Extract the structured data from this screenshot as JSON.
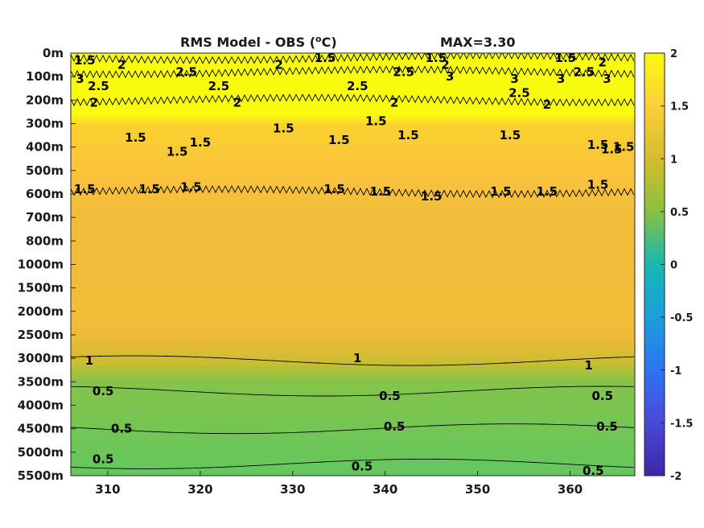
{
  "chart_data": {
    "type": "heatmap",
    "title": "RMS Model - OBS (",
    "title_unit_sup": "o",
    "title_unit_tail": "C)",
    "max_label": "MAX=3.30",
    "x_ticks": [
      310,
      320,
      330,
      340,
      350,
      360
    ],
    "xlim": [
      306,
      367
    ],
    "y_tick_labels": [
      "0m",
      "100m",
      "200m",
      "300m",
      "400m",
      "500m",
      "600m",
      "700m",
      "800m",
      "1000m",
      "1500m",
      "2000m",
      "2500m",
      "3000m",
      "3500m",
      "4000m",
      "4500m",
      "5000m",
      "5500m"
    ],
    "colorbar": {
      "limits": [
        -2,
        2
      ],
      "tick_values": [
        2,
        1.5,
        1,
        0.5,
        0,
        -0.5,
        -1,
        -1.5,
        -2
      ],
      "tick_labels": [
        "2",
        "1.5",
        "1",
        "0.5",
        "0",
        "-0.5",
        "-1",
        "-1.5",
        "-2"
      ],
      "colormap": "parula"
    },
    "depth_profile": {
      "depth_index": [
        0,
        1,
        2,
        3,
        4,
        5,
        6,
        7,
        8,
        9,
        10,
        11,
        12,
        13,
        14,
        15,
        16,
        17,
        18
      ],
      "rms": [
        2.3,
        2.4,
        2.3,
        1.7,
        1.65,
        1.6,
        1.5,
        1.4,
        1.4,
        1.4,
        1.4,
        1.45,
        1.35,
        1.05,
        0.75,
        0.7,
        0.65,
        0.6,
        0.55
      ]
    },
    "contours": [
      {
        "level": "1.5",
        "depth_index": 0.2
      },
      {
        "level": "2.5",
        "depth_index": 0.8
      },
      {
        "level": "2",
        "depth_index": 2.0
      },
      {
        "level": "1.5",
        "depth_index": 5.9
      },
      {
        "level": "1",
        "depth_index": 13.1
      },
      {
        "level": "0.5",
        "depth_index": 14.4
      },
      {
        "level": "0.5",
        "depth_index": 16.0
      },
      {
        "level": "0.5",
        "depth_index": 17.5
      }
    ],
    "contour_labels": [
      {
        "text": "1.5",
        "x": 307.5,
        "d": 0.3
      },
      {
        "text": "2",
        "x": 311.5,
        "d": 0.5
      },
      {
        "text": "3",
        "x": 307.0,
        "d": 1.1
      },
      {
        "text": "2.5",
        "x": 309.0,
        "d": 1.4
      },
      {
        "text": "2.5",
        "x": 318.5,
        "d": 0.8
      },
      {
        "text": "2.5",
        "x": 322.0,
        "d": 1.4
      },
      {
        "text": "2",
        "x": 328.5,
        "d": 0.5
      },
      {
        "text": "1.5",
        "x": 333.5,
        "d": 0.2
      },
      {
        "text": "2",
        "x": 308.5,
        "d": 2.1
      },
      {
        "text": "2",
        "x": 324.0,
        "d": 2.1
      },
      {
        "text": "2.5",
        "x": 337.0,
        "d": 1.4
      },
      {
        "text": "2.5",
        "x": 342.0,
        "d": 0.8
      },
      {
        "text": "1.5",
        "x": 345.5,
        "d": 0.2
      },
      {
        "text": "2",
        "x": 346.5,
        "d": 0.5
      },
      {
        "text": "3",
        "x": 347.0,
        "d": 1.0
      },
      {
        "text": "3",
        "x": 354.0,
        "d": 1.1
      },
      {
        "text": "2.5",
        "x": 354.5,
        "d": 1.7
      },
      {
        "text": "2",
        "x": 357.5,
        "d": 2.2
      },
      {
        "text": "2",
        "x": 341.0,
        "d": 2.1
      },
      {
        "text": "1.5",
        "x": 359.5,
        "d": 0.2
      },
      {
        "text": "2",
        "x": 363.5,
        "d": 0.4
      },
      {
        "text": "3",
        "x": 359.0,
        "d": 1.1
      },
      {
        "text": "2.5",
        "x": 361.5,
        "d": 0.8
      },
      {
        "text": "3",
        "x": 364.0,
        "d": 1.1
      },
      {
        "text": "1.5",
        "x": 313.0,
        "d": 3.6
      },
      {
        "text": "1.5",
        "x": 317.5,
        "d": 4.2
      },
      {
        "text": "1.5",
        "x": 320.0,
        "d": 3.8
      },
      {
        "text": "1.5",
        "x": 329.0,
        "d": 3.2
      },
      {
        "text": "1.5",
        "x": 339.0,
        "d": 2.9
      },
      {
        "text": "1.5",
        "x": 335.0,
        "d": 3.7
      },
      {
        "text": "1.5",
        "x": 342.5,
        "d": 3.5
      },
      {
        "text": "1.5",
        "x": 353.5,
        "d": 3.5
      },
      {
        "text": "1.5",
        "x": 363.0,
        "d": 3.9
      },
      {
        "text": "1.5",
        "x": 364.5,
        "d": 4.1
      },
      {
        "text": "1.5",
        "x": 365.8,
        "d": 4.0
      },
      {
        "text": "1.5",
        "x": 307.5,
        "d": 5.8
      },
      {
        "text": "1.5",
        "x": 314.5,
        "d": 5.8
      },
      {
        "text": "1.5",
        "x": 319.0,
        "d": 5.7
      },
      {
        "text": "1.5",
        "x": 334.5,
        "d": 5.8
      },
      {
        "text": "1.5",
        "x": 339.5,
        "d": 5.9
      },
      {
        "text": "1.5",
        "x": 345.0,
        "d": 6.1
      },
      {
        "text": "1.5",
        "x": 352.5,
        "d": 5.9
      },
      {
        "text": "1.5",
        "x": 357.5,
        "d": 5.9
      },
      {
        "text": "1.5",
        "x": 363.0,
        "d": 5.6
      },
      {
        "text": "1",
        "x": 308.0,
        "d": 13.1
      },
      {
        "text": "1",
        "x": 337.0,
        "d": 13.0
      },
      {
        "text": "1",
        "x": 362.0,
        "d": 13.3
      },
      {
        "text": "0.5",
        "x": 309.5,
        "d": 14.4
      },
      {
        "text": "0.5",
        "x": 340.5,
        "d": 14.6
      },
      {
        "text": "0.5",
        "x": 363.5,
        "d": 14.6
      },
      {
        "text": "0.5",
        "x": 311.5,
        "d": 16.0
      },
      {
        "text": "0.5",
        "x": 341.0,
        "d": 15.9
      },
      {
        "text": "0.5",
        "x": 364.0,
        "d": 15.9
      },
      {
        "text": "0.5",
        "x": 309.5,
        "d": 17.3
      },
      {
        "text": "0.5",
        "x": 337.5,
        "d": 17.6
      },
      {
        "text": "0.5",
        "x": 362.5,
        "d": 17.8
      }
    ]
  }
}
